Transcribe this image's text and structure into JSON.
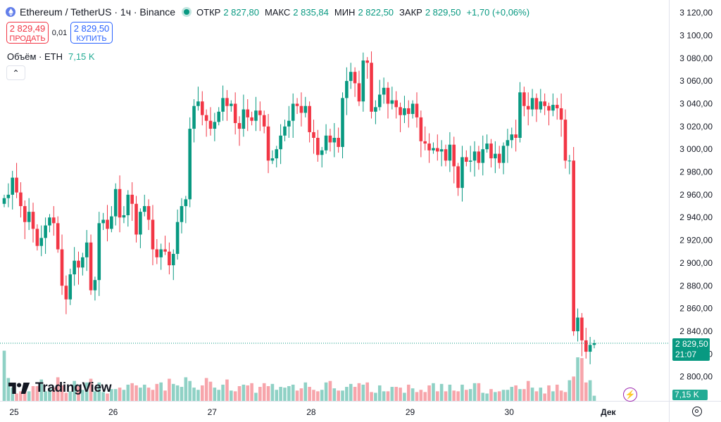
{
  "header": {
    "symbol_title": "Ethereum / TetherUS · 1ч · Binance",
    "ohlc": [
      {
        "key": "ОТКР",
        "value": "2 827,80"
      },
      {
        "key": "МАКС",
        "value": "2 835,84"
      },
      {
        "key": "МИН",
        "value": "2 822,50"
      },
      {
        "key": "ЗАКР",
        "value": "2 829,50"
      }
    ],
    "change": "+1,70 (+0,06%)"
  },
  "trade": {
    "sell_price": "2 829,49",
    "sell_label": "ПРОДАТЬ",
    "spread": "0,01",
    "buy_price": "2 829,50",
    "buy_label": "КУПИТЬ"
  },
  "volume_legend": {
    "label": "Объём · ETH",
    "value": "7,15 K"
  },
  "logo": "TradingView",
  "last_price": {
    "price": "2 829,50",
    "countdown": "21:07"
  },
  "last_volume": "7,15 K",
  "colors": {
    "up": "#089981",
    "down": "#f23645",
    "vol_up": "#8fd1c5",
    "vol_down": "#f7a5ab"
  },
  "icons": [
    "ethereum-icon",
    "live-dot-icon",
    "chevron-up-icon",
    "lightning-icon",
    "settings-icon"
  ],
  "chart_data": {
    "type": "candlestick",
    "timeframe": "1h",
    "y_ticks": [
      "3 120,00",
      "3 100,00",
      "3 080,00",
      "3 060,00",
      "3 040,00",
      "3 020,00",
      "3 000,00",
      "2 980,00",
      "2 960,00",
      "2 940,00",
      "2 920,00",
      "2 900,00",
      "2 880,00",
      "2 860,00",
      "2 840,00",
      "2 820,00",
      "2 800,00"
    ],
    "ylim": [
      2780,
      3125
    ],
    "x_ticks": [
      {
        "label": "25",
        "index": 0
      },
      {
        "label": "26",
        "index": 24
      },
      {
        "label": "27",
        "index": 48
      },
      {
        "label": "28",
        "index": 72
      },
      {
        "label": "29",
        "index": 96
      },
      {
        "label": "30",
        "index": 120
      },
      {
        "label": "Дек",
        "index": 144
      }
    ],
    "close_values": [
      2957,
      2960,
      2975,
      2962,
      2950,
      2936,
      2945,
      2930,
      2915,
      2922,
      2933,
      2940,
      2935,
      2912,
      2880,
      2868,
      2890,
      2902,
      2896,
      2905,
      2918,
      2876,
      2885,
      2935,
      2938,
      2930,
      2941,
      2965,
      2940,
      2942,
      2960,
      2952,
      2925,
      2945,
      2950,
      2938,
      2912,
      2905,
      2912,
      2910,
      2898,
      2908,
      2936,
      2950,
      2956,
      3018,
      3038,
      3042,
      3030,
      3025,
      3018,
      3024,
      3033,
      3045,
      3038,
      3040,
      3023,
      3018,
      3035,
      3028,
      3025,
      3034,
      3030,
      3020,
      2990,
      2992,
      3000,
      3012,
      3020,
      3025,
      3040,
      3038,
      3032,
      3038,
      3015,
      3010,
      2995,
      2999,
      3012,
      3006,
      3010,
      3002,
      3045,
      3060,
      3068,
      3058,
      3042,
      3078,
      3076,
      3033,
      3037,
      3048,
      3054,
      3040,
      3043,
      3037,
      3030,
      3036,
      3031,
      3040,
      3028,
      3007,
      3005,
      2999,
      3001,
      2998,
      3000,
      2990,
      3004,
      2985,
      2966,
      2993,
      2989,
      2990,
      2998,
      2988,
      3000,
      3005,
      2992,
      2996,
      2988,
      3003,
      3008,
      3013,
      3010,
      3050,
      3038,
      3035,
      3045,
      3035,
      3042,
      3038,
      3034,
      3039,
      3036,
      3026,
      2990,
      2990,
      2840,
      2852,
      2832,
      2822,
      2828,
      2829.5
    ],
    "open_values": [
      null
    ],
    "volume_values": [
      68,
      31,
      18,
      10,
      13,
      22,
      13,
      20,
      20,
      29,
      13,
      17,
      18,
      32,
      21,
      11,
      13,
      27,
      20,
      15,
      25,
      30,
      13,
      25,
      12,
      10,
      16,
      16,
      18,
      15,
      22,
      24,
      21,
      18,
      22,
      18,
      15,
      23,
      25,
      14,
      30,
      23,
      21,
      19,
      32,
      27,
      18,
      15,
      21,
      31,
      26,
      18,
      15,
      22,
      29,
      14,
      13,
      20,
      22,
      21,
      24,
      11,
      19,
      24,
      20,
      23,
      15,
      19,
      18,
      20,
      22,
      14,
      17,
      25,
      19,
      15,
      13,
      15,
      25,
      27,
      17,
      14,
      14,
      19,
      23,
      19,
      24,
      22,
      25,
      12,
      11,
      21,
      13,
      13,
      19,
      19,
      18,
      11,
      22,
      17,
      12,
      15,
      12,
      21,
      24,
      13,
      23,
      13,
      22,
      14,
      13,
      22,
      15,
      16,
      24,
      24,
      11,
      10,
      16,
      12,
      13,
      15,
      15,
      19,
      21,
      16,
      16,
      27,
      18,
      13,
      18,
      10,
      21,
      13,
      22,
      14,
      12,
      28,
      33,
      59,
      58,
      25,
      28,
      7
    ]
  }
}
